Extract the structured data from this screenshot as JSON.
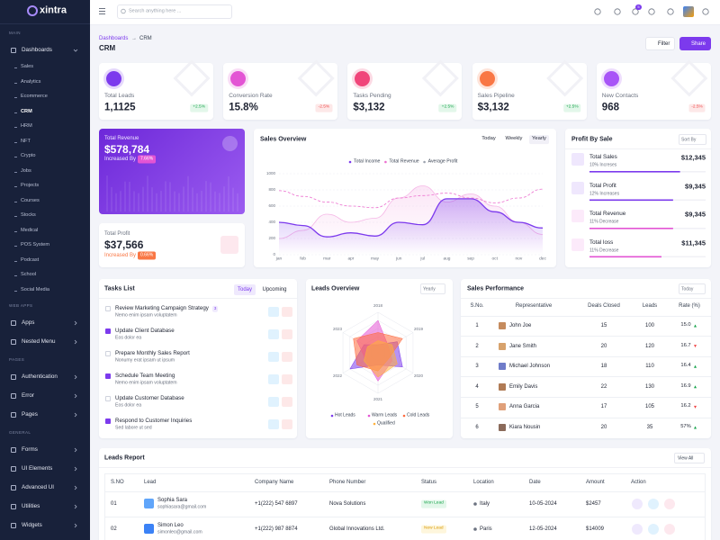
{
  "brand": "xintra",
  "search_placeholder": "Search anything here ...",
  "cart_badge": "5",
  "sidebar": [
    {
      "title": "MAIN",
      "items": [
        {
          "label": "Dashboards",
          "active": "CRM",
          "children": [
            "Sales",
            "Analytics",
            "Ecommerce",
            "CRM",
            "HRM",
            "NFT",
            "Crypto",
            "Jobs",
            "Projects",
            "Courses",
            "Stocks",
            "Medical",
            "POS System",
            "Podcast",
            "School",
            "Social Media"
          ]
        }
      ]
    },
    {
      "title": "WEB APPS",
      "items": [
        {
          "label": "Apps"
        },
        {
          "label": "Nested Menu"
        }
      ]
    },
    {
      "title": "PAGES",
      "items": [
        {
          "label": "Authentication"
        },
        {
          "label": "Error"
        },
        {
          "label": "Pages"
        }
      ]
    },
    {
      "title": "GENERAL",
      "items": [
        {
          "label": "Forms"
        },
        {
          "label": "UI Elements"
        },
        {
          "label": "Advanced UI"
        },
        {
          "label": "Utilities"
        },
        {
          "label": "Widgets"
        }
      ]
    }
  ],
  "breadcrumb": {
    "parent": "Dashboards",
    "separator": "→",
    "current": "CRM"
  },
  "page_title": "CRM",
  "buttons": {
    "filter": "Filter",
    "share": "Share"
  },
  "stats": [
    {
      "label": "Total Leads",
      "value": "1,1125",
      "change": "+2.5%"
    },
    {
      "label": "Conversion Rate",
      "value": "15.8%",
      "change": "-2.5%"
    },
    {
      "label": "Tasks Pending",
      "value": "$3,132",
      "change": "+2.5%"
    },
    {
      "label": "Sales Pipeline",
      "value": "$3,132",
      "change": "+2.5%"
    },
    {
      "label": "New Contacts",
      "value": "968",
      "change": "-2.5%"
    }
  ],
  "revenue": {
    "label": "Total Revenue",
    "value": "$578,784",
    "note": "Increased By",
    "badge": "7.66%"
  },
  "profit": {
    "label": "Total Profit",
    "value": "$37,566",
    "note": "Increased By",
    "badge": "0.66%"
  },
  "sales_overview": {
    "title": "Sales Overview",
    "tabs": [
      "Today",
      "Weekly",
      "Yearly"
    ],
    "active_tab": 2,
    "chart_data": {
      "type": "line",
      "categories": [
        "jan",
        "feb",
        "mar",
        "apr",
        "may",
        "jun",
        "jul",
        "aug",
        "sep",
        "oct",
        "nov",
        "dec"
      ],
      "series": [
        {
          "name": "Total Income",
          "color": "#7c3aed",
          "values": [
            400,
            360,
            220,
            270,
            230,
            400,
            370,
            690,
            690,
            530,
            400,
            330
          ]
        },
        {
          "name": "Total Revenue",
          "color": "#ec6fcf",
          "values": [
            790,
            720,
            650,
            600,
            580,
            700,
            730,
            760,
            700,
            640,
            700,
            810
          ]
        },
        {
          "name": "Average Profit",
          "color": "#f5b7e6",
          "values": [
            200,
            300,
            500,
            400,
            450,
            700,
            850,
            650,
            750,
            600,
            400,
            250
          ]
        }
      ],
      "ylim": [
        0,
        1000
      ],
      "yticks": [
        0,
        200,
        400,
        600,
        800,
        1000
      ],
      "grid": true
    }
  },
  "profit_by_sale": {
    "title": "Profit By Sale",
    "sort": "Sort By",
    "items": [
      {
        "name": "Total Sales",
        "sub": "10% Increses",
        "value": "$12,345",
        "progress": 78,
        "color": "#7c3aed"
      },
      {
        "name": "Total Profit",
        "sub": "12% Increases",
        "value": "$9,345",
        "progress": 72,
        "color": "#7c3aed"
      },
      {
        "name": "Total Revenue",
        "sub": "11% Decrease",
        "value": "$9,345",
        "progress": 72,
        "color": "#e354d4"
      },
      {
        "name": "Total loss",
        "sub": "11% Decrease",
        "value": "$11,345",
        "progress": 62,
        "color": "#e354d4"
      }
    ]
  },
  "tasks": {
    "title": "Tasks List",
    "tabs": [
      "Today",
      "Upcoming"
    ],
    "items": [
      {
        "title": "Review Marketing Campaign Strategy",
        "badge": "3",
        "sub": "Nemo enim ipsam voluptatem",
        "done": false
      },
      {
        "title": "Update Client Database",
        "sub": "Eos dolor ea",
        "done": true
      },
      {
        "title": "Prepare Monthly Sales Report",
        "sub": "Nonumy erat ipsam ut ipsum",
        "done": false
      },
      {
        "title": "Schedule Team Meeting",
        "sub": "Nemo enim ipsam voluptatem",
        "done": true
      },
      {
        "title": "Update Customer Database",
        "sub": "Eos dolor ea",
        "done": false
      },
      {
        "title": "Respond to Customer Inquiries",
        "sub": "Sed labore ut sed",
        "done": true
      }
    ]
  },
  "leads_overview": {
    "title": "Leads Overview",
    "period": "Yearly",
    "chart_data": {
      "type": "radar",
      "categories": [
        "2018",
        "2019",
        "2020",
        "2021",
        "2022",
        "2023"
      ],
      "rlim": [
        0,
        100
      ],
      "series": [
        {
          "name": "Hot Leads",
          "color": "#7c3aed",
          "values": [
            20,
            55,
            70,
            30,
            80,
            40
          ]
        },
        {
          "name": "Warm Leads",
          "color": "#e354d4",
          "values": [
            80,
            30,
            40,
            70,
            35,
            60
          ]
        },
        {
          "name": "Cold Leads",
          "color": "#ff6a3d",
          "values": [
            50,
            70,
            30,
            45,
            60,
            70
          ]
        },
        {
          "name": "Qualified",
          "color": "#ffb13d",
          "values": [
            30,
            40,
            55,
            60,
            40,
            30
          ]
        }
      ]
    }
  },
  "sales_performance": {
    "title": "Sales Performance",
    "period": "Today",
    "columns": [
      "S.No.",
      "Representative",
      "Deals Closed",
      "Leads",
      "Rate (%)"
    ],
    "rows": [
      {
        "no": "1",
        "name": "John Joe",
        "deals": "15",
        "leads": "100",
        "rate": "15.0",
        "trend": "up"
      },
      {
        "no": "2",
        "name": "Jane Smith",
        "deals": "20",
        "leads": "120",
        "rate": "16.7",
        "trend": "down"
      },
      {
        "no": "3",
        "name": "Michael Johnson",
        "deals": "18",
        "leads": "110",
        "rate": "16.4",
        "trend": "up"
      },
      {
        "no": "4",
        "name": "Emily Davis",
        "deals": "22",
        "leads": "130",
        "rate": "16.9",
        "trend": "up"
      },
      {
        "no": "5",
        "name": "Anna Garcia",
        "deals": "17",
        "leads": "105",
        "rate": "16.2",
        "trend": "down"
      },
      {
        "no": "6",
        "name": "Kiara Nousin",
        "deals": "20",
        "leads": "35",
        "rate": "57%",
        "trend": "up"
      }
    ]
  },
  "leads_report": {
    "title": "Leads Report",
    "view_all": "View All",
    "columns": [
      "S.NO",
      "Lead",
      "Company Name",
      "Phone Number",
      "Status",
      "Location",
      "Date",
      "Amount",
      "Action"
    ],
    "rows": [
      {
        "no": "01",
        "name": "Sophia Sara",
        "email": "sophiasara@gmail.com",
        "company": "+1(222) 547 6897",
        "phone": "Nova Solutions",
        "status": "Won Lead",
        "location": "Italy",
        "date": "10-05-2024",
        "amount": "$2457"
      },
      {
        "no": "02",
        "name": "Simon Leo",
        "email": "simonleo@gmail.com",
        "company": "+1(222) 987 8874",
        "phone": "Global Innovations Ltd.",
        "status": "New Lead",
        "location": "Paris",
        "date": "12-05-2024",
        "amount": "$14009"
      }
    ]
  }
}
